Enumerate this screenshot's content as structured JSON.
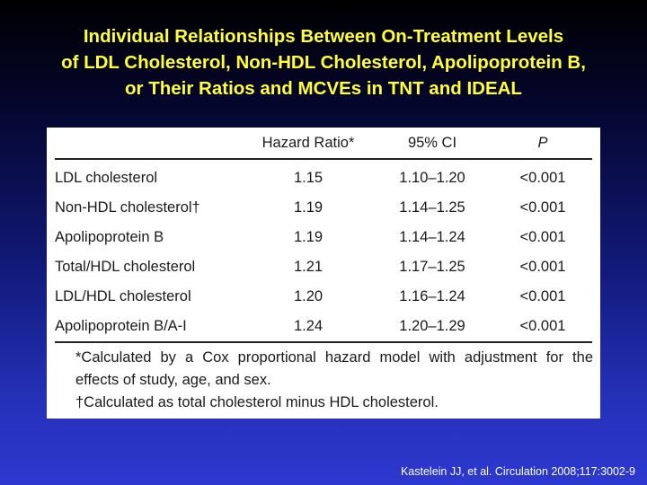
{
  "slide": {
    "title_lines": [
      "Individual Relationships Between On-Treatment Levels",
      "of LDL Cholesterol, Non-HDL Cholesterol, Apolipoprotein B,",
      "or Their Ratios and MCVEs in TNT and IDEAL"
    ],
    "citation": "Kastelein JJ, et al. Circulation 2008;117:3002-9"
  },
  "table": {
    "headers": {
      "measure": "",
      "hazard_ratio": "Hazard Ratio*",
      "ci": "95% CI",
      "p": "P"
    },
    "rows": [
      {
        "measure": "LDL cholesterol",
        "hazard_ratio": "1.15",
        "ci": "1.10–1.20",
        "p": "<0.001"
      },
      {
        "measure": "Non-HDL cholesterol†",
        "hazard_ratio": "1.19",
        "ci": "1.14–1.25",
        "p": "<0.001"
      },
      {
        "measure": "Apolipoprotein B",
        "hazard_ratio": "1.19",
        "ci": "1.14–1.24",
        "p": "<0.001"
      },
      {
        "measure": "Total/HDL cholesterol",
        "hazard_ratio": "1.21",
        "ci": "1.17–1.25",
        "p": "<0.001"
      },
      {
        "measure": "LDL/HDL cholesterol",
        "hazard_ratio": "1.20",
        "ci": "1.16–1.24",
        "p": "<0.001"
      },
      {
        "measure": "Apolipoprotein B/A-I",
        "hazard_ratio": "1.24",
        "ci": "1.20–1.29",
        "p": "<0.001"
      }
    ],
    "footnotes": {
      "hazard_line1": "*Calculated by a Cox proportional hazard model with adjustment for the",
      "hazard_line2": "effects of study, age, and sex.",
      "non_hdl": "†Calculated as total cholesterol minus HDL cholesterol."
    }
  },
  "colors": {
    "title": "#ffff3a",
    "citation": "#ffffff",
    "table_background": "#ffffff",
    "table_text": "#1a1a1a"
  }
}
